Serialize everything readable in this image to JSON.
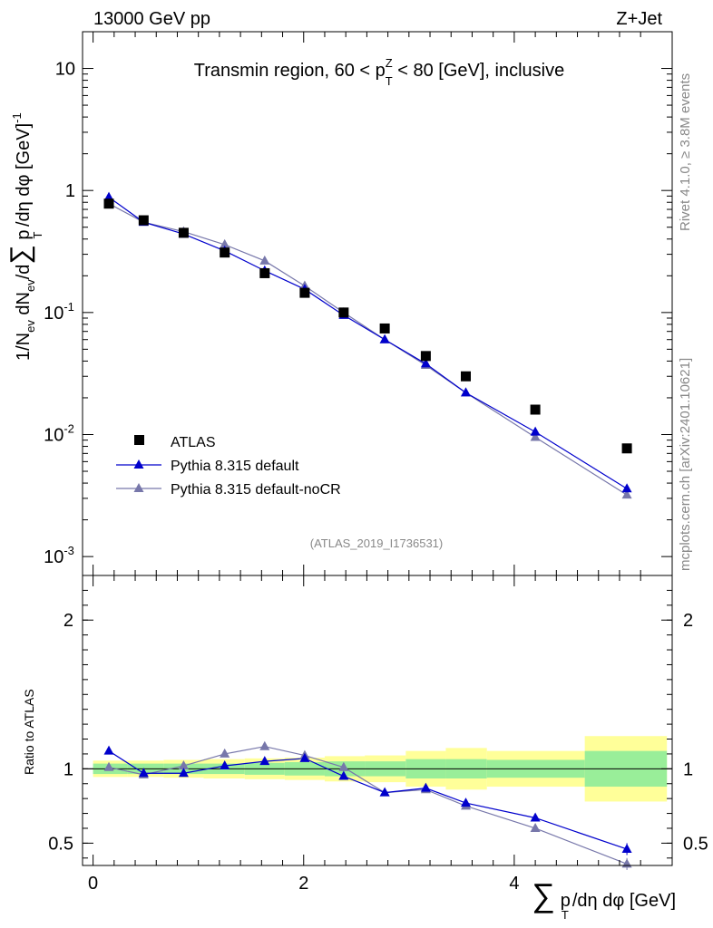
{
  "header": {
    "left": "13000 GeV pp",
    "right": "Z+Jet"
  },
  "side": {
    "rivet": "Rivet 4.1.0, ≥ 3.8M events",
    "mcplots": "mcplots.cern.ch [arXiv:2401.10621]"
  },
  "colors": {
    "atlas": "#000000",
    "default": "#0000cc",
    "nocr": "#7777aa",
    "band_inner": "#99ee99",
    "band_outer": "#ffff99"
  },
  "chart_data": [
    {
      "type": "scatter",
      "title": "Transmin region, 60 < p_T^Z < 80 [GeV], inclusive",
      "title_parts": {
        "pre": "Transmin region, 60 < p",
        "sup": "Z",
        "sub": "T",
        "post": " < 80 [GeV], inclusive"
      },
      "ylabel": "1/N_ev dN_ev/d∑ p_T /dη dφ [GeV]^-1",
      "ylabel_parts": {
        "a": "1/N",
        "ev": "ev",
        "b": " dN",
        "c": "/d",
        "sum": "∑",
        "d": " p",
        "T": "T",
        "e": " /dη dφ  [GeV]",
        "exp": "-1"
      },
      "yscale": "log",
      "ylim": [
        0.0007,
        20
      ],
      "xlim": [
        -0.1,
        5.5
      ],
      "yticks": [
        {
          "label": "10",
          "sup": "-3",
          "v": 0.001
        },
        {
          "label": "10",
          "sup": "-2",
          "v": 0.01
        },
        {
          "label": "10",
          "sup": "-1",
          "v": 0.1
        },
        {
          "label": "1",
          "sup": "",
          "v": 1
        },
        {
          "label": "10",
          "sup": "",
          "v": 10
        }
      ],
      "watermark": "(ATLAS_2019_I1736531)",
      "legend": {
        "position": "bottom-left",
        "entries": [
          "ATLAS",
          "Pythia 8.315 default",
          "Pythia 8.315 default-noCR"
        ]
      },
      "x": [
        0.15,
        0.48,
        0.86,
        1.25,
        1.63,
        2.01,
        2.38,
        2.77,
        3.16,
        3.54,
        4.2,
        5.07
      ],
      "series": [
        {
          "name": "ATLAS",
          "values": [
            0.78,
            0.57,
            0.45,
            0.31,
            0.21,
            0.145,
            0.1,
            0.074,
            0.044,
            0.03,
            0.016,
            0.0077
          ]
        },
        {
          "name": "Pythia 8.315 default",
          "values": [
            0.88,
            0.55,
            0.44,
            0.32,
            0.22,
            0.155,
            0.095,
            0.06,
            0.038,
            0.022,
            0.0105,
            0.0036
          ]
        },
        {
          "name": "Pythia 8.315 default-noCR",
          "values": [
            0.78,
            0.55,
            0.46,
            0.36,
            0.265,
            0.165,
            0.1,
            0.06,
            0.037,
            0.022,
            0.0095,
            0.0032
          ]
        }
      ]
    },
    {
      "type": "line",
      "ylabel": "Ratio to ATLAS",
      "xlabel": "∑ p_T /dη dφ [GeV]",
      "xlabel_parts": {
        "sum": "∑",
        "p": "p",
        "T": "T",
        "rest": "/dη dφ [GeV]"
      },
      "xlim": [
        -0.1,
        5.5
      ],
      "ylim": [
        0.35,
        2.3
      ],
      "xticks": [
        {
          "label": "0",
          "v": 0
        },
        {
          "label": "2",
          "v": 2
        },
        {
          "label": "4",
          "v": 4
        }
      ],
      "yticks": [
        {
          "label": "0.5",
          "v": 0.5
        },
        {
          "label": "1",
          "v": 1
        },
        {
          "label": "2",
          "v": 2
        }
      ],
      "x": [
        0.15,
        0.48,
        0.86,
        1.25,
        1.63,
        2.01,
        2.38,
        2.77,
        3.16,
        3.54,
        4.2,
        5.07
      ],
      "band_edges": [
        0,
        0.33,
        0.67,
        1.05,
        1.44,
        1.82,
        2.2,
        2.58,
        2.97,
        3.35,
        3.74,
        4.67,
        5.45
      ],
      "band_inner": [
        0.035,
        0.035,
        0.035,
        0.035,
        0.04,
        0.045,
        0.05,
        0.05,
        0.065,
        0.065,
        0.06,
        0.12
      ],
      "band_outer": [
        0.055,
        0.055,
        0.06,
        0.065,
        0.07,
        0.075,
        0.085,
        0.09,
        0.12,
        0.14,
        0.12,
        0.22
      ],
      "series": [
        {
          "name": "Pythia 8.315 default",
          "values": [
            1.12,
            0.97,
            0.97,
            1.02,
            1.05,
            1.07,
            0.95,
            0.84,
            0.87,
            0.77,
            0.67,
            0.46
          ],
          "errors": [
            0,
            0,
            0,
            0,
            0,
            0,
            0,
            0,
            0.015,
            0.02,
            0.02,
            0.04
          ]
        },
        {
          "name": "Pythia 8.315 default-noCR",
          "values": [
            1.01,
            0.96,
            1.02,
            1.1,
            1.15,
            1.09,
            1.01,
            0.84,
            0.86,
            0.75,
            0.6,
            0.36
          ],
          "errors": [
            0,
            0,
            0,
            0,
            0,
            0,
            0,
            0,
            0.015,
            0.02,
            0.02,
            0.04
          ]
        }
      ]
    }
  ]
}
